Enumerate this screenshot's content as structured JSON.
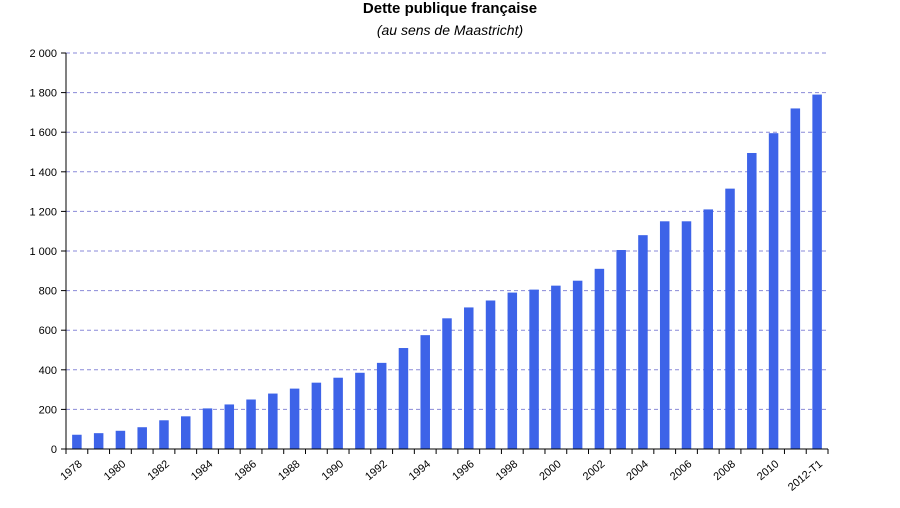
{
  "chart_data": {
    "type": "bar",
    "title": "Dette publique française",
    "subtitle": "(au sens de Maastricht)",
    "xlabel": "",
    "ylabel": "",
    "ylim": [
      0,
      2000
    ],
    "yticks": [
      0,
      200,
      400,
      600,
      800,
      1000,
      1200,
      1400,
      1600,
      1800,
      2000
    ],
    "ytick_labels": [
      "0",
      "200",
      "400",
      "600",
      "800",
      "1 000",
      "1 200",
      "1 400",
      "1 600",
      "1 800",
      "2 000"
    ],
    "grid": "horizontal dashed",
    "bar_color": "#3d63e8",
    "grid_color": "#8a8ad8",
    "categories": [
      "1978",
      "1979",
      "1980",
      "1981",
      "1982",
      "1983",
      "1984",
      "1985",
      "1986",
      "1987",
      "1988",
      "1989",
      "1990",
      "1991",
      "1992",
      "1993",
      "1994",
      "1995",
      "1996",
      "1997",
      "1998",
      "1999",
      "2000",
      "2001",
      "2002",
      "2003",
      "2004",
      "2005",
      "2006",
      "2007",
      "2008",
      "2009",
      "2010",
      "2011",
      "2012-T1"
    ],
    "xtick_labels": [
      "1978",
      "",
      "1980",
      "",
      "1982",
      "",
      "1984",
      "",
      "1986",
      "",
      "1988",
      "",
      "1990",
      "",
      "1992",
      "",
      "1994",
      "",
      "1996",
      "",
      "1998",
      "",
      "2000",
      "",
      "2002",
      "",
      "2004",
      "",
      "2006",
      "",
      "2008",
      "",
      "2010",
      "",
      "2012-T1"
    ],
    "values": [
      72,
      80,
      92,
      110,
      145,
      165,
      205,
      225,
      250,
      280,
      305,
      335,
      360,
      385,
      435,
      510,
      575,
      660,
      715,
      750,
      790,
      805,
      825,
      850,
      910,
      1005,
      1080,
      1150,
      1150,
      1210,
      1315,
      1495,
      1595,
      1720,
      1790
    ]
  }
}
